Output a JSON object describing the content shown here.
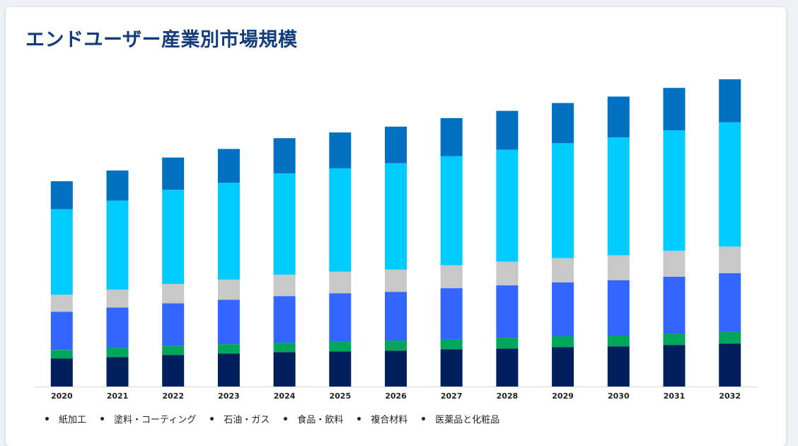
{
  "title": "エンドユーザー産業別市場規模",
  "chart_data": {
    "type": "bar",
    "stacked": true,
    "title": "エンドユーザー産業別市場規模",
    "xlabel": "",
    "ylabel": "",
    "categories": [
      "2020",
      "2021",
      "2022",
      "2023",
      "2024",
      "2025",
      "2026",
      "2027",
      "2028",
      "2029",
      "2030",
      "2031",
      "2032"
    ],
    "ylim": [
      0,
      430
    ],
    "grid": false,
    "legend_position": "bottom-left",
    "series": [
      {
        "name": "紙加工",
        "color": "#001f5c",
        "values": [
          39,
          41,
          44,
          46,
          48,
          49,
          50,
          52,
          53,
          55,
          56,
          58,
          60
        ]
      },
      {
        "name": "塗料・コーティング",
        "color": "#00a65a",
        "values": [
          12,
          13,
          13,
          13,
          13,
          14,
          14,
          14,
          15,
          15,
          15,
          16,
          16
        ]
      },
      {
        "name": "石油・ガス",
        "color": "#3366ff",
        "values": [
          53,
          56,
          59,
          62,
          65,
          67,
          68,
          71,
          73,
          75,
          77,
          79,
          82
        ]
      },
      {
        "name": "食品・飲料",
        "color": "#c8c8c8",
        "values": [
          24,
          25,
          27,
          28,
          30,
          30,
          31,
          32,
          33,
          34,
          35,
          36,
          37
        ]
      },
      {
        "name": "複合材料",
        "color": "#00ccff",
        "values": [
          119,
          124,
          131,
          135,
          141,
          144,
          148,
          152,
          156,
          160,
          164,
          168,
          173
        ]
      },
      {
        "name": "医薬品と化粧品",
        "color": "#0070c0",
        "values": [
          39,
          42,
          45,
          47,
          49,
          50,
          51,
          53,
          54,
          56,
          57,
          59,
          60
        ]
      }
    ]
  }
}
